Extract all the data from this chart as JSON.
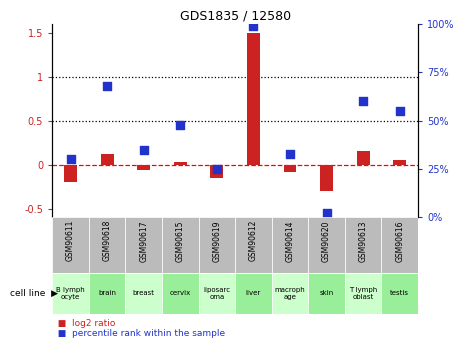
{
  "title": "GDS1835 / 12580",
  "gsm_labels": [
    "GSM90611",
    "GSM90618",
    "GSM90617",
    "GSM90615",
    "GSM90619",
    "GSM90612",
    "GSM90614",
    "GSM90620",
    "GSM90613",
    "GSM90616"
  ],
  "cell_lines": [
    "B lymph\nocyte",
    "brain",
    "breast",
    "cervix",
    "liposarc\noma",
    "liver",
    "macroph\nage",
    "skin",
    "T lymph\noblast",
    "testis"
  ],
  "log2_ratio": [
    -0.2,
    0.12,
    -0.06,
    0.03,
    -0.15,
    1.5,
    -0.08,
    -0.3,
    0.16,
    0.05
  ],
  "pct_rank": [
    30,
    68,
    35,
    48,
    25,
    99,
    33,
    2,
    60,
    55
  ],
  "ylim_left": [
    -0.6,
    1.6
  ],
  "ylim_right": [
    0,
    100
  ],
  "yticks_left": [
    -0.5,
    0.0,
    0.5,
    1.0,
    1.5
  ],
  "ytick_labels_left": [
    "-0.5",
    "0",
    "0.5",
    "1",
    "1.5"
  ],
  "yticks_right": [
    0,
    25,
    50,
    75,
    100
  ],
  "ytick_labels_right": [
    "0%",
    "25%",
    "50%",
    "75%",
    "100%"
  ],
  "red_color": "#cc2222",
  "blue_color": "#2233cc",
  "gsm_bg_color": "#bbbbbb",
  "cell_line_bg_light": "#ccffcc",
  "cell_line_bg_dark": "#99ee99",
  "cell_line_alt": [
    0,
    1,
    0,
    1,
    0,
    1,
    0,
    1,
    0,
    1
  ]
}
